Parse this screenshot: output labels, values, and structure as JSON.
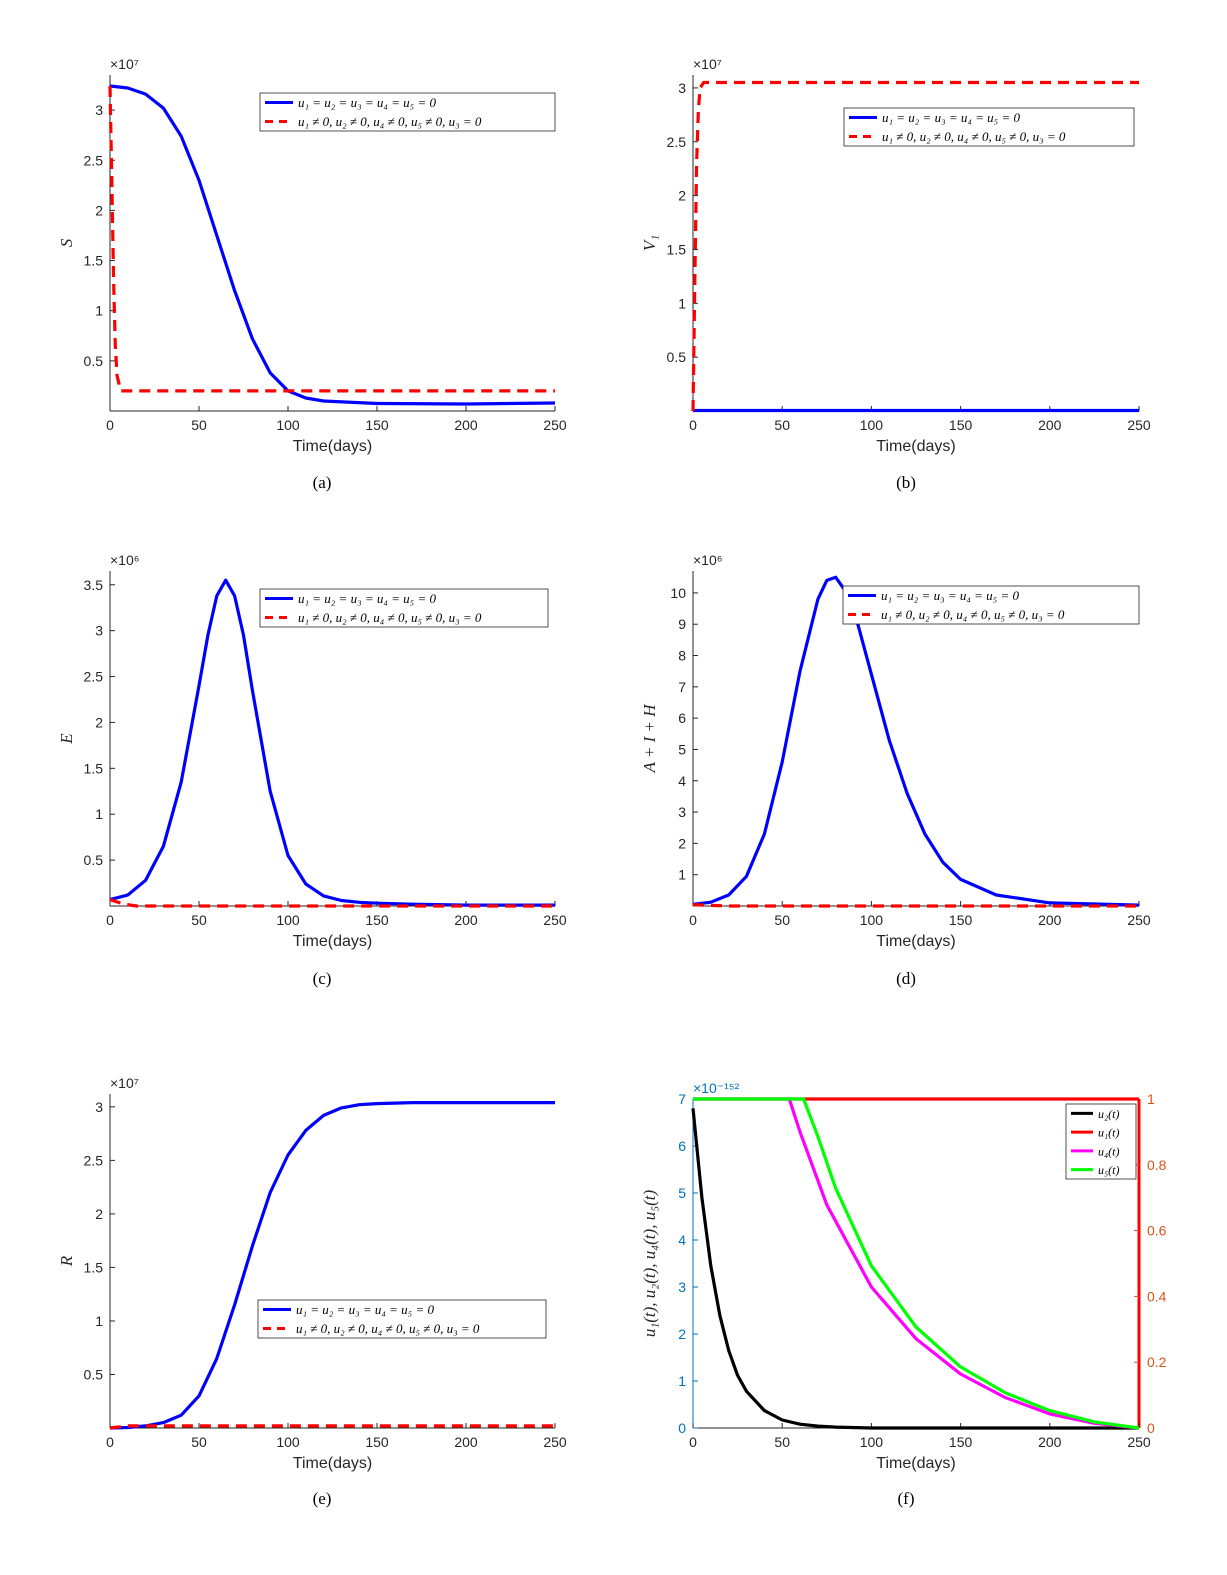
{
  "legend_labels": {
    "no_control": "u₁ = u₂ = u₃ = u₄ = u₅ = 0",
    "with_control": "u₁ ≠ 0, u₂ ≠ 0, u₄ ≠ 0, u₅ ≠ 0, u₃ = 0"
  },
  "chart_data": [
    {
      "id": "a",
      "caption": "(a)",
      "type": "line",
      "xlabel": "Time(days)",
      "ylabel": "S",
      "exponent": "×10⁷",
      "xlim": [
        0,
        250
      ],
      "ylim": [
        0,
        3.35
      ],
      "xticks": [
        0,
        50,
        100,
        150,
        200,
        250
      ],
      "yticks": [
        0.5,
        1,
        1.5,
        2,
        2.5,
        3
      ],
      "legend": "top-right",
      "series": [
        {
          "name": "u₁ = u₂ = u₃ = u₄ = u₅ = 0",
          "color": "#0000ff",
          "style": "solid",
          "x": [
            0,
            10,
            20,
            30,
            40,
            50,
            60,
            70,
            80,
            90,
            100,
            110,
            120,
            150,
            200,
            250
          ],
          "y": [
            3.24,
            3.22,
            3.16,
            3.02,
            2.74,
            2.3,
            1.75,
            1.2,
            0.72,
            0.38,
            0.2,
            0.13,
            0.1,
            0.075,
            0.07,
            0.08
          ]
        },
        {
          "name": "u₁ ≠ 0, u₂ ≠ 0, u₄ ≠ 0, u₅ ≠ 0, u₃ = 0",
          "color": "#ff0000",
          "style": "dashed",
          "x": [
            0,
            1,
            2,
            3,
            4,
            6,
            250
          ],
          "y": [
            3.24,
            2.3,
            1.3,
            0.65,
            0.35,
            0.2,
            0.2
          ]
        }
      ]
    },
    {
      "id": "b",
      "caption": "(b)",
      "type": "line",
      "xlabel": "Time(days)",
      "ylabel": "V₁",
      "exponent": "×10⁷",
      "xlim": [
        0,
        250
      ],
      "ylim": [
        0,
        3.12
      ],
      "xticks": [
        0,
        50,
        100,
        150,
        200,
        250
      ],
      "yticks": [
        0.5,
        1,
        1.5,
        2,
        2.5,
        3
      ],
      "legend": "top-right",
      "series": [
        {
          "name": "u₁ = u₂ = u₃ = u₄ = u₅ = 0",
          "color": "#0000ff",
          "style": "solid",
          "x": [
            0,
            250
          ],
          "y": [
            0.005,
            0.005
          ]
        },
        {
          "name": "u₁ ≠ 0, u₂ ≠ 0, u₄ ≠ 0, u₅ ≠ 0, u₃ = 0",
          "color": "#ff0000",
          "style": "dashed",
          "x": [
            0,
            1,
            2,
            3,
            4,
            6,
            250
          ],
          "y": [
            0,
            1.2,
            2.3,
            2.8,
            3.0,
            3.05,
            3.05
          ]
        }
      ]
    },
    {
      "id": "c",
      "caption": "(c)",
      "type": "line",
      "xlabel": "Time(days)",
      "ylabel": "E",
      "exponent": "×10⁶",
      "xlim": [
        0,
        250
      ],
      "ylim": [
        0,
        3.65
      ],
      "xticks": [
        0,
        50,
        100,
        150,
        200,
        250
      ],
      "yticks": [
        0.5,
        1,
        1.5,
        2,
        2.5,
        3,
        3.5
      ],
      "legend": "top-right",
      "series": [
        {
          "name": "u₁ = u₂ = u₃ = u₄ = u₅ = 0",
          "color": "#0000ff",
          "style": "solid",
          "x": [
            0,
            10,
            20,
            30,
            40,
            50,
            55,
            60,
            65,
            70,
            75,
            80,
            90,
            100,
            110,
            120,
            130,
            140,
            150,
            170,
            200,
            250
          ],
          "y": [
            0.07,
            0.12,
            0.28,
            0.65,
            1.35,
            2.4,
            2.95,
            3.38,
            3.55,
            3.38,
            2.95,
            2.35,
            1.25,
            0.55,
            0.24,
            0.11,
            0.06,
            0.04,
            0.03,
            0.02,
            0.01,
            0.01
          ]
        },
        {
          "name": "u₁ ≠ 0, u₂ ≠ 0, u₄ ≠ 0, u₅ ≠ 0, u₃ = 0",
          "color": "#ff0000",
          "style": "dashed",
          "x": [
            0,
            3,
            8,
            15,
            250
          ],
          "y": [
            0.07,
            0.05,
            0.02,
            0.0,
            0.0
          ]
        }
      ]
    },
    {
      "id": "d",
      "caption": "(d)",
      "type": "line",
      "xlabel": "Time(days)",
      "ylabel": "A + I + H",
      "exponent": "×10⁶",
      "xlim": [
        0,
        250
      ],
      "ylim": [
        0,
        10.7
      ],
      "xticks": [
        0,
        50,
        100,
        150,
        200,
        250
      ],
      "yticks": [
        1,
        2,
        3,
        4,
        5,
        6,
        7,
        8,
        9,
        10
      ],
      "legend": "top-right",
      "series": [
        {
          "name": "u₁ = u₂ = u₃ = u₄ = u₅ = 0",
          "color": "#0000ff",
          "style": "solid",
          "x": [
            0,
            10,
            20,
            30,
            40,
            50,
            60,
            70,
            75,
            80,
            85,
            90,
            100,
            110,
            120,
            130,
            140,
            150,
            170,
            200,
            250
          ],
          "y": [
            0.05,
            0.12,
            0.35,
            0.95,
            2.3,
            4.6,
            7.5,
            9.8,
            10.4,
            10.5,
            10.1,
            9.5,
            7.4,
            5.3,
            3.6,
            2.3,
            1.4,
            0.85,
            0.35,
            0.1,
            0.03
          ]
        },
        {
          "name": "u₁ ≠ 0, u₂ ≠ 0, u₄ ≠ 0, u₅ ≠ 0, u₃ = 0",
          "color": "#ff0000",
          "style": "dashed",
          "x": [
            0,
            20,
            250
          ],
          "y": [
            0.04,
            0.0,
            0.0
          ]
        }
      ]
    },
    {
      "id": "e",
      "caption": "(e)",
      "type": "line",
      "xlabel": "Time(days)",
      "ylabel": "R",
      "exponent": "×10⁷",
      "xlim": [
        0,
        250
      ],
      "ylim": [
        0,
        3.12
      ],
      "xticks": [
        0,
        50,
        100,
        150,
        200,
        250
      ],
      "yticks": [
        0.5,
        1,
        1.5,
        2,
        2.5,
        3
      ],
      "legend": "bottom-right",
      "series": [
        {
          "name": "u₁ = u₂ = u₃ = u₄ = u₅ = 0",
          "color": "#0000ff",
          "style": "solid",
          "x": [
            0,
            10,
            20,
            30,
            40,
            50,
            60,
            70,
            80,
            90,
            100,
            110,
            120,
            130,
            140,
            150,
            170,
            200,
            250
          ],
          "y": [
            0.0,
            0.005,
            0.02,
            0.05,
            0.12,
            0.3,
            0.65,
            1.15,
            1.7,
            2.2,
            2.55,
            2.78,
            2.92,
            2.99,
            3.02,
            3.03,
            3.04,
            3.04,
            3.04
          ]
        },
        {
          "name": "u₁ ≠ 0, u₂ ≠ 0, u₄ ≠ 0, u₅ ≠ 0, u₃ = 0",
          "color": "#ff0000",
          "style": "dashed",
          "x": [
            0,
            10,
            250
          ],
          "y": [
            0.0,
            0.02,
            0.02
          ]
        }
      ]
    },
    {
      "id": "f",
      "caption": "(f)",
      "type": "line",
      "xlabel": "Time(days)",
      "ylabel": "u₁(t), u₂(t), u₄(t), u₅(t)",
      "exponent": "×10⁻¹⁵²",
      "xlim": [
        0,
        250
      ],
      "ylim": [
        0,
        7
      ],
      "ylim_right": [
        0,
        1
      ],
      "xticks": [
        0,
        50,
        100,
        150,
        200,
        250
      ],
      "yticks": [
        0,
        1,
        2,
        3,
        4,
        5,
        6,
        7
      ],
      "yticks_right": [
        0,
        0.2,
        0.4,
        0.6,
        0.8,
        1
      ],
      "left_axis_color": "#0072bd",
      "right_axis_color": "#d95319",
      "legend": "top-right",
      "series": [
        {
          "name": "u₂(t)",
          "color": "#000000",
          "style": "solid",
          "axis": "left",
          "x": [
            0,
            5,
            10,
            15,
            20,
            25,
            30,
            40,
            50,
            60,
            70,
            80,
            100,
            150,
            250
          ],
          "y": [
            6.8,
            4.9,
            3.45,
            2.4,
            1.65,
            1.12,
            0.78,
            0.37,
            0.17,
            0.08,
            0.04,
            0.02,
            0.0,
            0.0,
            0.0
          ]
        },
        {
          "name": "u₁(t)",
          "color": "#ff0000",
          "style": "solid",
          "axis": "right",
          "x": [
            0,
            250
          ],
          "y": [
            1,
            1
          ]
        },
        {
          "name": "u₄(t)",
          "color": "#ff00ff",
          "style": "solid",
          "axis": "left",
          "x": [
            0,
            54,
            60,
            75,
            100,
            125,
            150,
            175,
            200,
            225,
            250
          ],
          "y": [
            7,
            7,
            6.3,
            4.75,
            3.0,
            1.9,
            1.15,
            0.65,
            0.3,
            0.1,
            0.0
          ]
        },
        {
          "name": "u₅(t)",
          "color": "#00ff00",
          "style": "solid",
          "axis": "left",
          "x": [
            0,
            62,
            70,
            80,
            100,
            125,
            150,
            175,
            200,
            225,
            250
          ],
          "y": [
            7,
            7,
            6.2,
            5.1,
            3.45,
            2.15,
            1.3,
            0.75,
            0.37,
            0.13,
            0.0
          ]
        }
      ]
    }
  ]
}
